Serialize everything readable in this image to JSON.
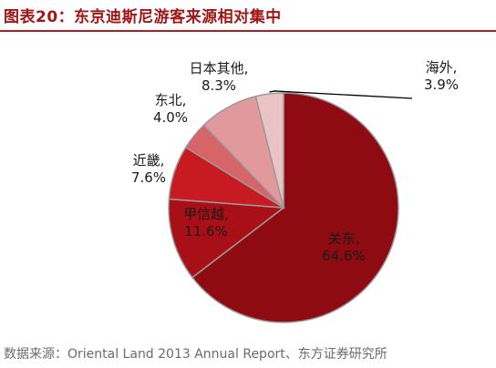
{
  "figure": {
    "title": "图表20：东京迪斯尼游客来源相对集中",
    "source": "数据来源：Oriental Land 2013 Annual Report、东方证券研究所"
  },
  "chart_data": {
    "type": "pie",
    "title": "",
    "slices": [
      {
        "label": "关东",
        "value": 64.6,
        "display": "64.6%",
        "color": "#8e0b12"
      },
      {
        "label": "甲信越",
        "value": 11.6,
        "display": "11.6%",
        "color": "#a80f16"
      },
      {
        "label": "近畿",
        "value": 7.6,
        "display": "7.6%",
        "color": "#c81a21"
      },
      {
        "label": "东北",
        "value": 4.0,
        "display": "4.0%",
        "color": "#d76467"
      },
      {
        "label": "日本其他",
        "value": 8.3,
        "display": "8.3%",
        "color": "#e2999b"
      },
      {
        "label": "海外",
        "value": 3.9,
        "display": "3.9%",
        "color": "#ecc3c4"
      }
    ],
    "start_angle_deg": 90,
    "direction": "clockwise"
  }
}
